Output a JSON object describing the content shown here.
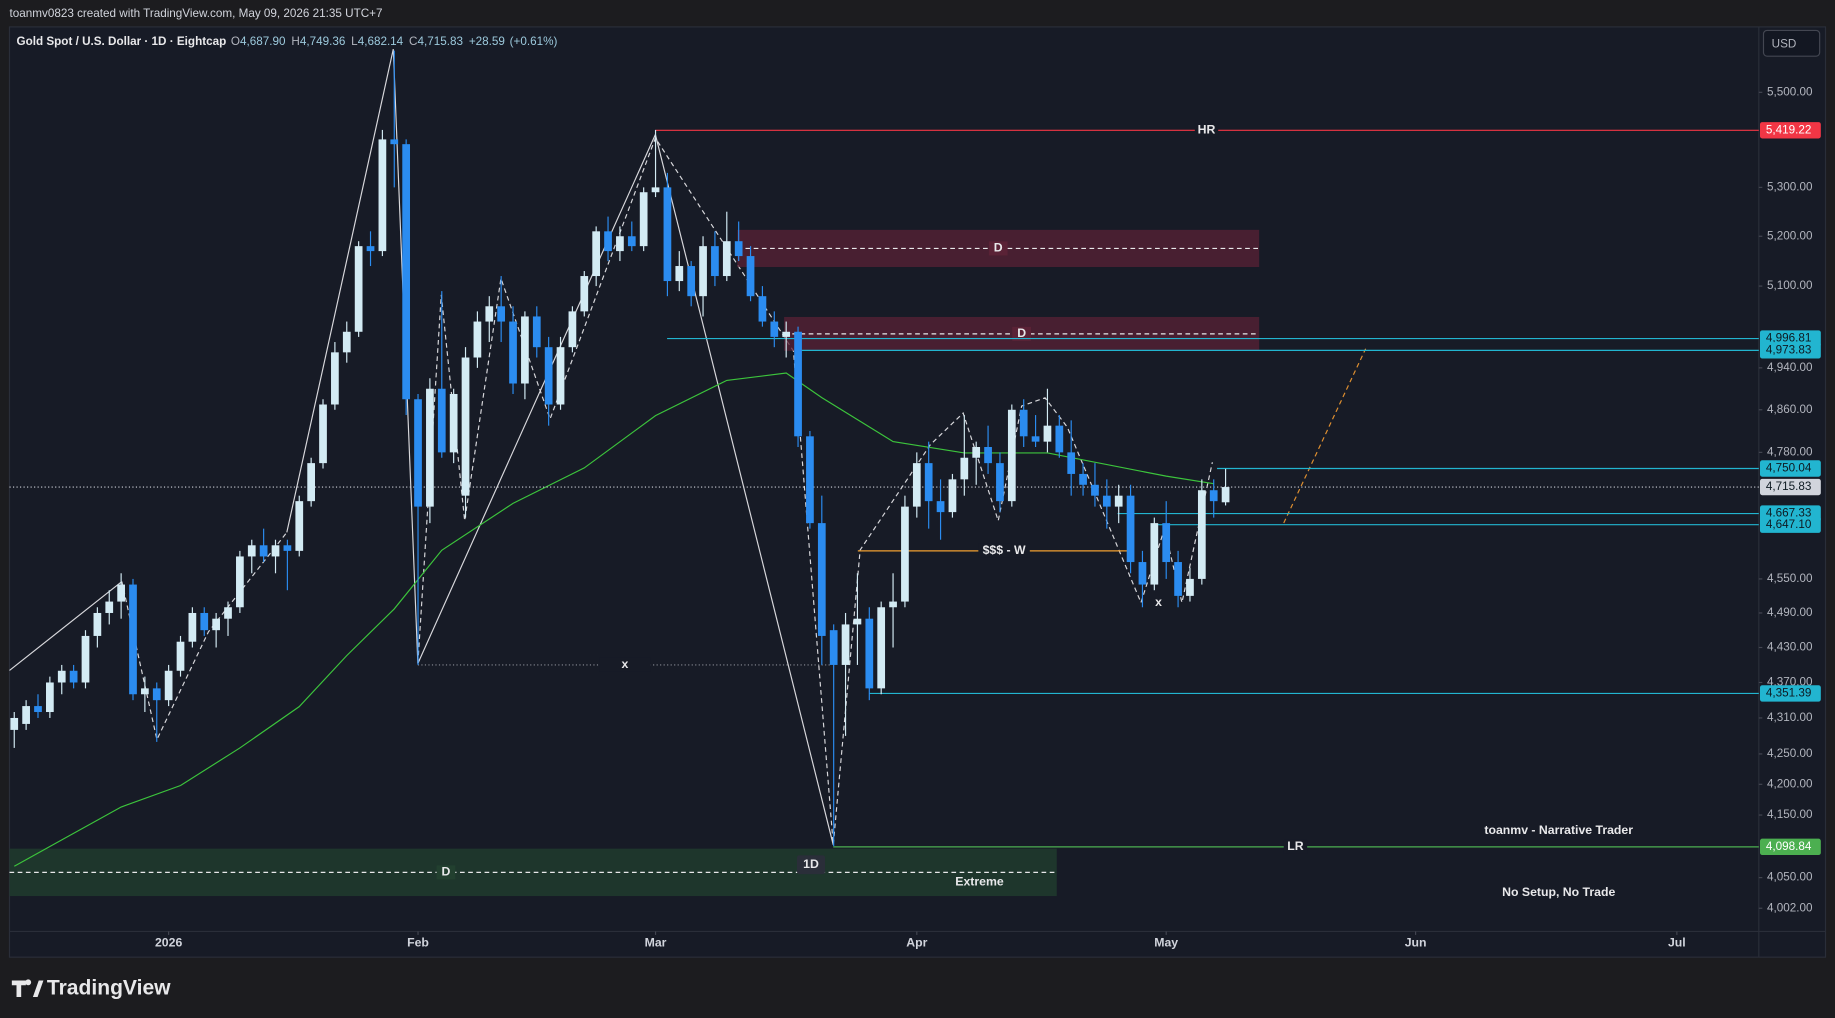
{
  "chart_data": {
    "type": "candlestick",
    "credit": "toanmv0823 created with TradingView.com, May 09, 2026 21:35 UTC+7",
    "title": "Gold Spot / U.S. Dollar · 1D · Eightcap",
    "ohlc": [
      {
        "key": "O",
        "value": 4687.9,
        "label": "4,687.90"
      },
      {
        "key": "H",
        "value": 4749.36,
        "label": "4,749.36"
      },
      {
        "key": "L",
        "value": 4682.14,
        "label": "4,682.14"
      },
      {
        "key": "C",
        "value": 4715.83,
        "label": "4,715.83"
      }
    ],
    "change": {
      "value": 28.59,
      "label": "+28.59"
    },
    "change_pct": {
      "value": 0.61,
      "label": "(+0.61%)"
    },
    "currency": "USD",
    "brand": "TradingView",
    "log_scale": true,
    "grid": false,
    "up_color": "#d3ebf4",
    "down_color": "#2b8cf0",
    "candles": {
      "open": [
        4290,
        4300,
        4330,
        4320,
        4370,
        4390,
        4370,
        4450,
        4490,
        4510,
        4540,
        4350,
        4360,
        4340,
        4390,
        4440,
        4490,
        4460,
        4480,
        4500,
        4590,
        4610,
        4590,
        4610,
        4600,
        4690,
        4760,
        4870,
        4970,
        5010,
        5180,
        5170,
        5400,
        5390,
        4880,
        4680,
        4900,
        4780,
        4700,
        4960,
        5030,
        5060,
        5030,
        4910,
        5040,
        4980,
        4870,
        4980,
        5050,
        5120,
        5210,
        5170,
        5200,
        5180,
        5290,
        5300,
        5110,
        5140,
        5080,
        5180,
        5120,
        5190,
        5160,
        5080,
        5030,
        5000,
        5010,
        4810,
        4650,
        4460,
        4400,
        4470,
        4480,
        4360,
        4500,
        4510,
        4680,
        4760,
        4690,
        4670,
        4730,
        4770,
        4790,
        4760,
        4690,
        4860,
        4810,
        4800,
        4830,
        4780,
        4740,
        4720,
        4700,
        4680,
        4700,
        4580,
        4540,
        4650,
        4580,
        4520,
        4550,
        4710,
        4687.9
      ],
      "high": [
        4320,
        4340,
        4350,
        4380,
        4400,
        4400,
        4460,
        4500,
        4530,
        4560,
        4550,
        4380,
        4370,
        4400,
        4450,
        4500,
        4500,
        4490,
        4510,
        4600,
        4620,
        4640,
        4620,
        4620,
        4700,
        4770,
        4880,
        4990,
        5030,
        5190,
        5210,
        5420,
        5590,
        5400,
        4890,
        4920,
        5090,
        4900,
        4980,
        5050,
        5080,
        5120,
        5060,
        5050,
        5060,
        5000,
        5000,
        5060,
        5130,
        5220,
        5240,
        5220,
        5230,
        5300,
        5420,
        5330,
        5170,
        5150,
        5200,
        5210,
        5250,
        5230,
        5180,
        5100,
        5050,
        5030,
        5020,
        4820,
        4700,
        4470,
        4490,
        4560,
        4500,
        4510,
        4560,
        4700,
        4780,
        4800,
        4730,
        4740,
        4850,
        4800,
        4830,
        4780,
        4870,
        4880,
        4850,
        4900,
        4850,
        4840,
        4760,
        4760,
        4730,
        4720,
        4720,
        4600,
        4660,
        4690,
        4600,
        4570,
        4730,
        4730,
        4749.36
      ],
      "low": [
        4260,
        4290,
        4310,
        4310,
        4350,
        4360,
        4360,
        4430,
        4470,
        4480,
        4340,
        4320,
        4270,
        4330,
        4380,
        4430,
        4450,
        4430,
        4450,
        4490,
        4560,
        4580,
        4560,
        4530,
        4590,
        4680,
        4750,
        4860,
        4950,
        5000,
        5140,
        5160,
        5300,
        4850,
        4400,
        4650,
        4770,
        4760,
        4660,
        4940,
        4990,
        4990,
        4890,
        4880,
        4960,
        4830,
        4860,
        4970,
        5040,
        5100,
        5150,
        5150,
        5170,
        5170,
        5280,
        5080,
        5090,
        5060,
        5040,
        5100,
        5110,
        5150,
        5070,
        5020,
        4980,
        4960,
        4790,
        4640,
        4400,
        4100,
        4280,
        4400,
        4340,
        4350,
        4430,
        4500,
        4660,
        4640,
        4620,
        4660,
        4700,
        4720,
        4740,
        4670,
        4680,
        4790,
        4790,
        4780,
        4770,
        4700,
        4700,
        4680,
        4640,
        4650,
        4560,
        4500,
        4530,
        4550,
        4500,
        4510,
        4540,
        4660,
        4682.14
      ],
      "close": [
        4310,
        4330,
        4320,
        4370,
        4390,
        4370,
        4450,
        4490,
        4510,
        4540,
        4350,
        4360,
        4340,
        4390,
        4440,
        4490,
        4460,
        4480,
        4500,
        4590,
        4610,
        4590,
        4610,
        4600,
        4690,
        4760,
        4870,
        4970,
        5010,
        5180,
        5170,
        5400,
        5390,
        4880,
        4680,
        4900,
        4780,
        4890,
        4960,
        5030,
        5060,
        5030,
        4910,
        5040,
        4980,
        4870,
        4980,
        5050,
        5120,
        5210,
        5170,
        5200,
        5180,
        5290,
        5300,
        5110,
        5140,
        5080,
        5180,
        5120,
        5190,
        5160,
        5080,
        5030,
        5000,
        5010,
        4810,
        4650,
        4450,
        4400,
        4470,
        4480,
        4360,
        4500,
        4510,
        4680,
        4760,
        4690,
        4670,
        4730,
        4770,
        4790,
        4760,
        4690,
        4860,
        4810,
        4800,
        4830,
        4780,
        4740,
        4720,
        4700,
        4680,
        4700,
        4580,
        4540,
        4650,
        4580,
        4520,
        4550,
        4710,
        4690,
        4715.83
      ]
    },
    "ma": {
      "color": "#3cc43c",
      "x": [
        0,
        4,
        9,
        14,
        19,
        24,
        28,
        32,
        36,
        42,
        48,
        54,
        60,
        65,
        68,
        74,
        80,
        87,
        97,
        101
      ],
      "values": [
        4068,
        4110,
        4163,
        4198,
        4260,
        4329,
        4416,
        4497,
        4601,
        4686,
        4751,
        4849,
        4916,
        4930,
        4883,
        4800,
        4779,
        4779,
        4736,
        4722
      ]
    },
    "xlim": [
      -0.4,
      146.9
    ],
    "xticks": [
      {
        "value": 13,
        "label": "2026"
      },
      {
        "value": 34,
        "label": "Feb"
      },
      {
        "value": 54,
        "label": "Mar"
      },
      {
        "value": 76,
        "label": "Apr"
      },
      {
        "value": 97,
        "label": "May"
      },
      {
        "value": 118,
        "label": "Jun"
      },
      {
        "value": 140,
        "label": "Jul"
      }
    ],
    "ylim": [
      3966,
      5642
    ],
    "yticks": [
      {
        "value": 5500,
        "label": "5,500.00"
      },
      {
        "value": 5300,
        "label": "5,300.00"
      },
      {
        "value": 5200,
        "label": "5,200.00"
      },
      {
        "value": 5100,
        "label": "5,100.00"
      },
      {
        "value": 4940,
        "label": "4,940.00"
      },
      {
        "value": 4860,
        "label": "4,860.00"
      },
      {
        "value": 4780,
        "label": "4,780.00"
      },
      {
        "value": 4550,
        "label": "4,550.00"
      },
      {
        "value": 4490,
        "label": "4,490.00"
      },
      {
        "value": 4430,
        "label": "4,430.00"
      },
      {
        "value": 4370,
        "label": "4,370.00"
      },
      {
        "value": 4310,
        "label": "4,310.00"
      },
      {
        "value": 4250,
        "label": "4,250.00"
      },
      {
        "value": 4200,
        "label": "4,200.00"
      },
      {
        "value": 4150,
        "label": "4,150.00"
      },
      {
        "value": 4050,
        "label": "4,050.00"
      },
      {
        "value": 4002,
        "label": "4,002.00"
      }
    ],
    "levels": [
      {
        "value": 5419.22,
        "label": "5,419.22",
        "color": "#f23645",
        "text": "HR"
      },
      {
        "value": 4996.81,
        "label": "4,996.81",
        "color": "#22b5d0"
      },
      {
        "value": 4973.83,
        "label": "4,973.83",
        "color": "#22b5d0"
      },
      {
        "value": 4750.04,
        "label": "4,750.04",
        "color": "#22b5d0"
      },
      {
        "value": 4715.83,
        "label": "4,715.83",
        "color": "#d1d4dc",
        "style": "dotted"
      },
      {
        "value": 4667.33,
        "label": "4,667.33",
        "color": "#22b5d0"
      },
      {
        "value": 4647.1,
        "label": "4,647.10",
        "color": "#22b5d0"
      },
      {
        "value": 4351.39,
        "label": "4,351.39",
        "color": "#22b5d0"
      },
      {
        "value": 4098.84,
        "label": "4,098.84",
        "color": "#4caf50",
        "text": "LR"
      }
    ],
    "zones": [
      {
        "text": "D",
        "range": [
          5138,
          5213
        ],
        "color": "#5a2236"
      },
      {
        "text": "D",
        "range": [
          4973,
          5039
        ],
        "color": "#5a2236"
      },
      {
        "text": "D",
        "range": [
          4021,
          4096
        ],
        "color": "#22402f"
      }
    ],
    "marked_lines": [
      {
        "text": "$$$ - W",
        "value": 4600,
        "color": "#f0a030"
      },
      {
        "text": "x",
        "value": 4400,
        "color": "#8a8d96",
        "style": "dotted"
      }
    ],
    "notes": [
      "1D",
      "Extreme",
      "x",
      "toanmv - Narrative Trader",
      "No Setup, No Trade"
    ]
  }
}
